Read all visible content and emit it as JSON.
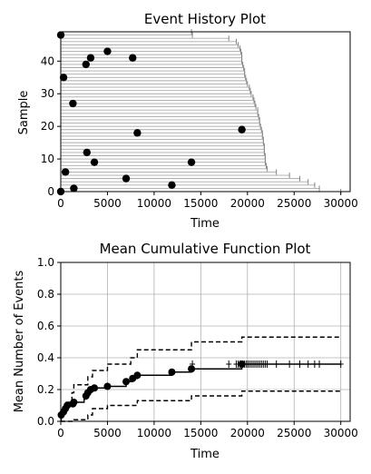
{
  "chart_data": [
    {
      "type": "event-history",
      "title": "Event History Plot",
      "xlabel": "Time",
      "ylabel": "Sample",
      "xlim": [
        0,
        31000
      ],
      "ylim": [
        0,
        49
      ],
      "xticks": [
        "0",
        "5000",
        "10000",
        "15000",
        "20000",
        "25000",
        "30000"
      ],
      "xtick_values": [
        0,
        5000,
        10000,
        15000,
        20000,
        25000,
        30000
      ],
      "yticks": [
        "0",
        "10",
        "20",
        "30",
        "40"
      ],
      "ytick_values": [
        0,
        10,
        20,
        30,
        40
      ],
      "censor_times": [
        30000,
        27700,
        27200,
        26500,
        25600,
        24500,
        23100,
        22100,
        22000,
        21900,
        21900,
        21900,
        21800,
        21800,
        21800,
        21700,
        21700,
        21600,
        21600,
        21500,
        21400,
        21300,
        21300,
        21200,
        21100,
        21100,
        20900,
        20800,
        20700,
        20600,
        20400,
        20300,
        20200,
        20000,
        19900,
        19800,
        19700,
        19700,
        19600,
        19500,
        19400,
        19400,
        19400,
        19300,
        19200,
        19000,
        18800,
        18000,
        14100,
        14000
      ],
      "events": [
        {
          "sample": 0,
          "time": 0
        },
        {
          "sample": 1,
          "time": 1400
        },
        {
          "sample": 2,
          "time": 11900
        },
        {
          "sample": 4,
          "time": 7000
        },
        {
          "sample": 6,
          "time": 500
        },
        {
          "sample": 9,
          "time": 3600
        },
        {
          "sample": 9,
          "time": 14000
        },
        {
          "sample": 12,
          "time": 2800
        },
        {
          "sample": 18,
          "time": 8200
        },
        {
          "sample": 19,
          "time": 19400
        },
        {
          "sample": 27,
          "time": 1300
        },
        {
          "sample": 35,
          "time": 300
        },
        {
          "sample": 39,
          "time": 2700
        },
        {
          "sample": 41,
          "time": 3200
        },
        {
          "sample": 41,
          "time": 7700
        },
        {
          "sample": 43,
          "time": 5000
        },
        {
          "sample": 48,
          "time": 0
        }
      ],
      "event_color": "#000000",
      "line_color": "#aaaaaa"
    },
    {
      "type": "line",
      "title": "Mean Cumulative Function Plot",
      "xlabel": "Time",
      "ylabel": "Mean Number of Events",
      "xlim": [
        0,
        31000
      ],
      "ylim": [
        0,
        1.0
      ],
      "grid": true,
      "xticks": [
        "0",
        "5000",
        "10000",
        "15000",
        "20000",
        "25000",
        "30000"
      ],
      "xtick_values": [
        0,
        5000,
        10000,
        15000,
        20000,
        25000,
        30000
      ],
      "yticks": [
        "0.0",
        "0.2",
        "0.4",
        "0.6",
        "0.8",
        "1.0"
      ],
      "ytick_values": [
        0,
        0.2,
        0.4,
        0.6,
        0.8,
        1.0
      ],
      "mcf": [
        [
          0,
          0.0
        ],
        [
          50,
          0.04
        ],
        [
          300,
          0.06
        ],
        [
          500,
          0.08
        ],
        [
          700,
          0.1
        ],
        [
          1300,
          0.11
        ],
        [
          1400,
          0.12
        ],
        [
          2500,
          0.14
        ],
        [
          2700,
          0.16
        ],
        [
          2900,
          0.18
        ],
        [
          3200,
          0.2
        ],
        [
          3600,
          0.21
        ],
        [
          5000,
          0.22
        ],
        [
          7000,
          0.25
        ],
        [
          7700,
          0.27
        ],
        [
          8200,
          0.29
        ],
        [
          11900,
          0.31
        ],
        [
          14000,
          0.33
        ],
        [
          19400,
          0.36
        ],
        [
          30000,
          0.36
        ]
      ],
      "upper": [
        [
          0,
          0.06
        ],
        [
          400,
          0.12
        ],
        [
          1200,
          0.18
        ],
        [
          1400,
          0.23
        ],
        [
          2900,
          0.28
        ],
        [
          3400,
          0.32
        ],
        [
          5000,
          0.36
        ],
        [
          7500,
          0.4
        ],
        [
          8200,
          0.45
        ],
        [
          14000,
          0.5
        ],
        [
          19400,
          0.53
        ],
        [
          30000,
          0.53
        ]
      ],
      "lower": [
        [
          0,
          0.0
        ],
        [
          1400,
          0.01
        ],
        [
          2900,
          0.04
        ],
        [
          3400,
          0.08
        ],
        [
          5000,
          0.1
        ],
        [
          8200,
          0.13
        ],
        [
          14000,
          0.16
        ],
        [
          19400,
          0.19
        ],
        [
          30000,
          0.19
        ]
      ],
      "event_points": [
        [
          50,
          0.04
        ],
        [
          300,
          0.06
        ],
        [
          500,
          0.08
        ],
        [
          700,
          0.1
        ],
        [
          1300,
          0.11
        ],
        [
          1400,
          0.12
        ],
        [
          2700,
          0.16
        ],
        [
          2900,
          0.18
        ],
        [
          3200,
          0.2
        ],
        [
          3600,
          0.21
        ],
        [
          5000,
          0.22
        ],
        [
          7000,
          0.25
        ],
        [
          7700,
          0.27
        ],
        [
          8200,
          0.29
        ],
        [
          11900,
          0.31
        ],
        [
          14000,
          0.33
        ],
        [
          19400,
          0.36
        ]
      ],
      "censor_marks": [
        14100,
        18000,
        18800,
        19000,
        19200,
        19500,
        19700,
        19900,
        20100,
        20300,
        20500,
        20700,
        20900,
        21100,
        21300,
        21500,
        21700,
        21900,
        22100,
        23100,
        24500,
        25600,
        26500,
        27200,
        27700,
        30000
      ],
      "censor_value": 0.36
    }
  ]
}
